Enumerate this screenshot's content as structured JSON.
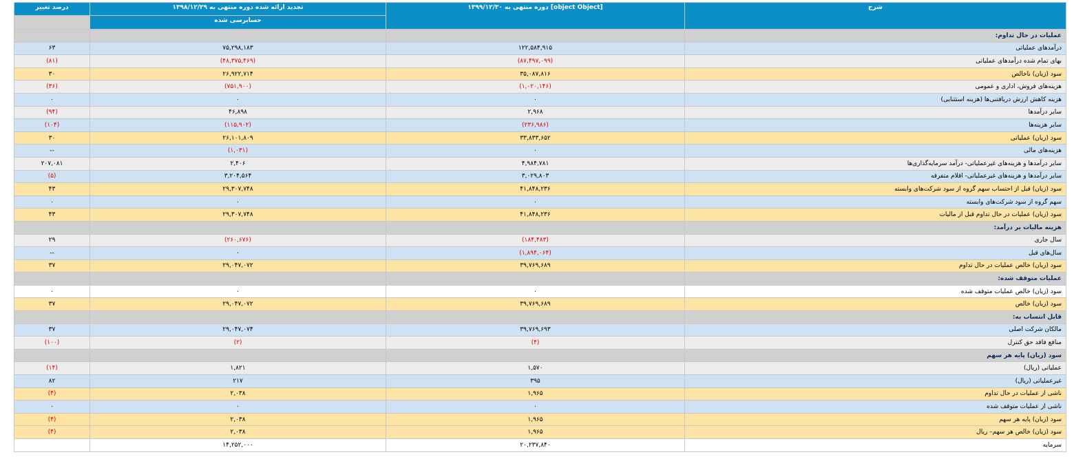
{
  "headers": {
    "pct_change": "درصد تغییر",
    "restated": "تجدید ارائه شده دوره منتهی به ۱۳۹۸/۱۲/۲۹",
    "restated_sub": "حسابرسی شده",
    "current": "دوره منتهی به ۱۳۹۹/۱۲/۳۰ [object Object]",
    "description": "شرح"
  },
  "rows": [
    {
      "style": "section",
      "label": "عملیات در حال تداوم:",
      "current": "",
      "restated": "",
      "pct": ""
    },
    {
      "style": "blue",
      "label": "درآمدهای عملیاتی",
      "current": "۱۲۲,۵۸۴,۹۱۵",
      "restated": "۷۵,۲۹۸,۱۸۳",
      "pct": "۶۳"
    },
    {
      "style": "gray",
      "label": "بهای تمام شده درآمدهای عملیاتی",
      "current": "(۸۷,۴۹۷,۰۹۹)",
      "restated": "(۴۸,۳۷۵,۴۶۹)",
      "pct": "(۸۱)"
    },
    {
      "style": "orange",
      "label": "سود (زیان) ناخالص",
      "current": "۳۵,۰۸۷,۸۱۶",
      "restated": "۲۶,۹۲۲,۷۱۴",
      "pct": "۳۰"
    },
    {
      "style": "gray",
      "label": "هزینه‌های فروش، اداری و عمومی",
      "current": "(۱,۰۲۰,۱۴۶)",
      "restated": "(۷۵۱,۹۰۰)",
      "pct": "(۳۶)"
    },
    {
      "style": "blue",
      "label": "هزینه کاهش ارزش دریافتنی‌ها (هزینه استثنایی)",
      "current": "۰",
      "restated": "۰",
      "pct": "۰"
    },
    {
      "style": "gray",
      "label": "سایر درآمدها",
      "current": "۲,۹۶۸",
      "restated": "۴۶,۸۹۸",
      "pct": "(۹۴)"
    },
    {
      "style": "blue",
      "label": "سایر هزینه‌ها",
      "current": "(۲۳۶,۹۸۶)",
      "restated": "(۱۱۵,۹۰۲)",
      "pct": "(۱۰۴)"
    },
    {
      "style": "orange",
      "label": "سود (زیان) عملیاتی",
      "current": "۳۳,۸۳۳,۶۵۲",
      "restated": "۲۶,۱۰۱,۸۰۹",
      "pct": "۳۰"
    },
    {
      "style": "blue",
      "label": "هزینه‌های مالی",
      "current": "۰",
      "restated": "(۱,۰۳۱)",
      "pct": "--"
    },
    {
      "style": "gray",
      "label": "سایر درآمدها و هزینه‌های غیرعملیاتی- درآمد سرمایه‌گذاری‌ها",
      "current": "۴,۹۸۴,۷۸۱",
      "restated": "۲,۴۰۶",
      "pct": "۲۰۷,۰۸۱"
    },
    {
      "style": "blue",
      "label": "سایر درآمدها و هزینه‌های غیرعملیاتی- اقلام متفرقه",
      "current": "۳,۰۲۹,۸۰۳",
      "restated": "۳,۲۰۴,۵۶۴",
      "pct": "(۵)"
    },
    {
      "style": "orange",
      "label": "سود (زیان) قبل از احتساب سهم گروه از سود شرکت‌های وابسته",
      "current": "۴۱,۸۴۸,۲۳۶",
      "restated": "۲۹,۳۰۷,۷۴۸",
      "pct": "۴۳"
    },
    {
      "style": "blue",
      "label": "سهم گروه از سود شرکت‌های وابسته",
      "current": "۰",
      "restated": "۰",
      "pct": "۰"
    },
    {
      "style": "orange",
      "label": "سود (زیان) عملیات در حال تداوم قبل از مالیات",
      "current": "۴۱,۸۴۸,۲۳۶",
      "restated": "۲۹,۳۰۷,۷۴۸",
      "pct": "۴۳"
    },
    {
      "style": "section",
      "label": "هزینه مالیات بر درآمد:",
      "current": "",
      "restated": "",
      "pct": ""
    },
    {
      "style": "gray",
      "label": "سال جاری",
      "current": "(۱۸۴,۴۸۳)",
      "restated": "(۲۶۰,۶۷۶)",
      "pct": "۲۹"
    },
    {
      "style": "blue",
      "label": "سال‌های قبل",
      "current": "(۱,۸۹۴,۰۶۴)",
      "restated": "۰",
      "pct": "--"
    },
    {
      "style": "orange",
      "label": "سود (زیان) خالص عملیات در حال تداوم",
      "current": "۳۹,۷۶۹,۶۸۹",
      "restated": "۲۹,۰۴۷,۰۷۲",
      "pct": "۳۷"
    },
    {
      "style": "section",
      "label": "عملیات متوقف شده:",
      "current": "",
      "restated": "",
      "pct": ""
    },
    {
      "style": "white",
      "label": "سود (زیان) خالص عملیات متوقف شده",
      "current": "۰",
      "restated": "۰",
      "pct": "۰"
    },
    {
      "style": "orange",
      "label": "سود (زیان) خالص",
      "current": "۳۹,۷۶۹,۶۸۹",
      "restated": "۲۹,۰۴۷,۰۷۲",
      "pct": "۳۷"
    },
    {
      "style": "section",
      "label": "قابل انتساب به:",
      "current": "",
      "restated": "",
      "pct": ""
    },
    {
      "style": "blue",
      "label": "مالکان شرکت اصلی",
      "current": "۳۹,۷۶۹,۶۹۳",
      "restated": "۲۹,۰۴۷,۰۷۴",
      "pct": "۳۷"
    },
    {
      "style": "gray",
      "label": "منافع فاقد حق کنترل",
      "current": "(۴)",
      "restated": "(۲)",
      "pct": "(۱۰۰)"
    },
    {
      "style": "section",
      "label": "سود (زیان) پایه هر سهم",
      "current": "",
      "restated": "",
      "pct": ""
    },
    {
      "style": "gray",
      "label": "عملیاتی (ریال)",
      "current": "۱,۵۷۰",
      "restated": "۱,۸۲۱",
      "pct": "(۱۴)"
    },
    {
      "style": "blue",
      "label": "غیرعملیاتی (ریال)",
      "current": "۳۹۵",
      "restated": "۲۱۷",
      "pct": "۸۲"
    },
    {
      "style": "orange",
      "label": "ناشی از عملیات در حال تداوم",
      "current": "۱,۹۶۵",
      "restated": "۲,۰۳۸",
      "pct": "(۴)"
    },
    {
      "style": "blue",
      "label": "ناشی از عملیات متوقف شده",
      "current": "۰",
      "restated": "۰",
      "pct": "۰"
    },
    {
      "style": "orange",
      "label": "سود (زیان) پایه هر سهم",
      "current": "۱,۹۶۵",
      "restated": "۲,۰۳۸",
      "pct": "(۴)"
    },
    {
      "style": "orange",
      "label": "سود (زیان) خالص هر سهم– ریال",
      "current": "۱,۹۶۵",
      "restated": "۲,۰۳۸",
      "pct": "(۴)"
    },
    {
      "style": "white",
      "label": "سرمایه",
      "current": "۲۰,۲۳۷,۸۴۰",
      "restated": "۱۴,۲۵۲,۰۰۰",
      "pct": ""
    }
  ]
}
